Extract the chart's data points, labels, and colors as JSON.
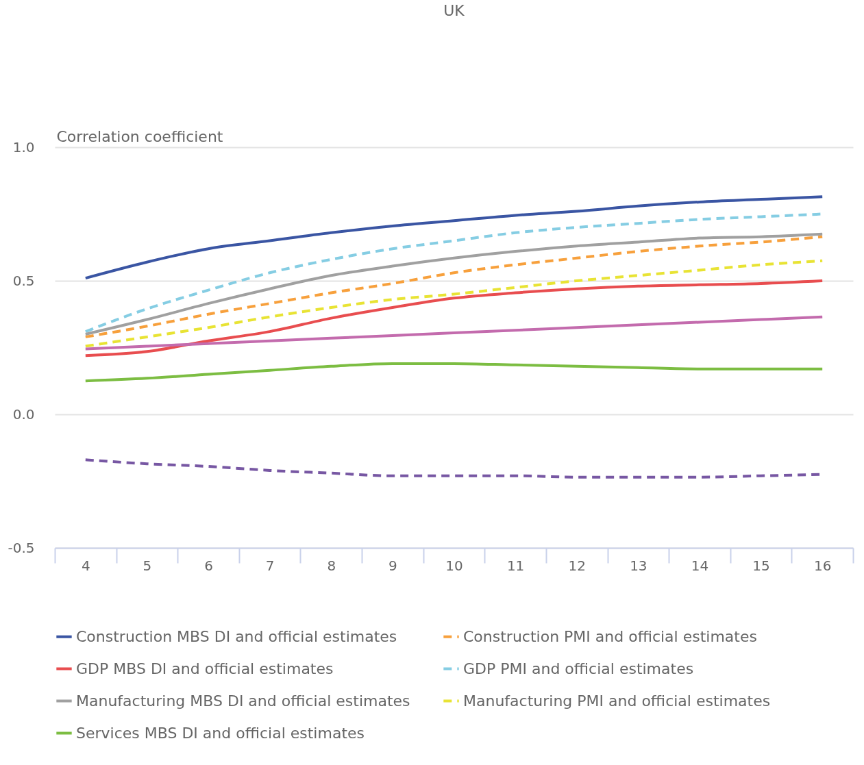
{
  "chart_data": {
    "type": "line",
    "title": "UK",
    "ylabel": "Correlation coefficient",
    "categories": [
      "4",
      "5",
      "6",
      "7",
      "8",
      "9",
      "10",
      "11",
      "12",
      "13",
      "14",
      "15",
      "16"
    ],
    "ylim": [
      -0.5,
      1.0
    ],
    "yticks": [
      {
        "value": 1.0,
        "label": "1.0"
      },
      0.5,
      {
        "value": 0,
        "label": "0.0"
      },
      -0.5
    ],
    "grid": "y",
    "legend": "bottom",
    "series": [
      {
        "name": "Construction MBS DI and official estimates",
        "color": "#3a55a3",
        "line_style": "solid",
        "values": [
          0.51,
          0.57,
          0.62,
          0.65,
          0.68,
          0.705,
          0.725,
          0.745,
          0.76,
          0.78,
          0.795,
          0.805,
          0.815
        ]
      },
      {
        "name": "Construction PMI and official estimates",
        "color": "#f7a03c",
        "line_style": "dashed",
        "values": [
          0.29,
          0.33,
          0.375,
          0.415,
          0.455,
          0.49,
          0.53,
          0.56,
          0.585,
          0.61,
          0.63,
          0.645,
          0.665
        ]
      },
      {
        "name": "GDP MBS DI and official estimates",
        "color": "#e84d4f",
        "line_style": "solid",
        "values": [
          0.22,
          0.235,
          0.275,
          0.31,
          0.36,
          0.4,
          0.435,
          0.455,
          0.47,
          0.48,
          0.485,
          0.49,
          0.5
        ]
      },
      {
        "name": "GDP PMI and official estimates",
        "color": "#85cde3",
        "line_style": "dashed",
        "values": [
          0.31,
          0.395,
          0.465,
          0.53,
          0.58,
          0.62,
          0.65,
          0.68,
          0.7,
          0.715,
          0.73,
          0.74,
          0.75
        ]
      },
      {
        "name": "Manufacturing MBS DI and official estimates",
        "color": "#a0a0a0",
        "line_style": "solid",
        "values": [
          0.3,
          0.355,
          0.415,
          0.47,
          0.52,
          0.555,
          0.585,
          0.61,
          0.63,
          0.645,
          0.66,
          0.665,
          0.675
        ]
      },
      {
        "name": "Manufacturing PMI and official estimates",
        "color": "#e8e334",
        "line_style": "dashed",
        "values": [
          0.255,
          0.29,
          0.325,
          0.365,
          0.4,
          0.43,
          0.45,
          0.475,
          0.5,
          0.52,
          0.54,
          0.56,
          0.575
        ]
      },
      {
        "name": "Services MBS DI and official estimates",
        "color": "#7cbd42",
        "line_style": "solid",
        "values": [
          0.125,
          0.135,
          0.15,
          0.165,
          0.18,
          0.19,
          0.19,
          0.185,
          0.18,
          0.175,
          0.17,
          0.17,
          0.17
        ]
      },
      {
        "color": "#c36bad",
        "line_style": "solid",
        "values": [
          0.245,
          0.255,
          0.265,
          0.275,
          0.285,
          0.295,
          0.305,
          0.315,
          0.325,
          0.335,
          0.345,
          0.355,
          0.365
        ]
      },
      {
        "color": "#7757a3",
        "line_style": "dashed",
        "values": [
          -0.17,
          -0.185,
          -0.195,
          -0.21,
          -0.22,
          -0.23,
          -0.23,
          -0.23,
          -0.235,
          -0.235,
          -0.235,
          -0.23,
          -0.225
        ]
      }
    ]
  }
}
